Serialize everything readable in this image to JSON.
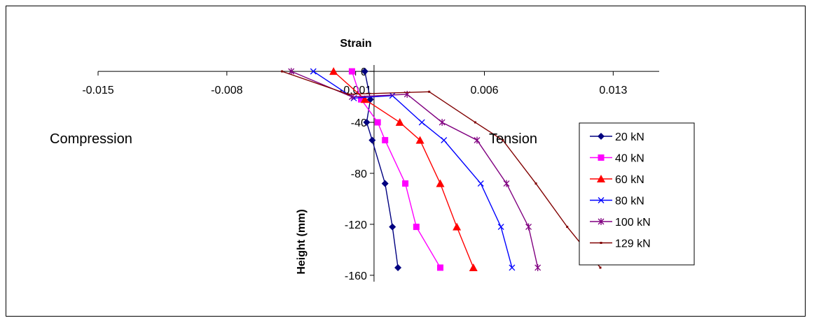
{
  "chart_data": {
    "type": "line",
    "xlabel": "Strain",
    "ylabel": "Height (mm)",
    "xlim": [
      -0.015,
      0.0155
    ],
    "ylim": [
      -165,
      5
    ],
    "x_ticks": [
      -0.015,
      -0.008,
      -0.001,
      0.006,
      0.013
    ],
    "x_tick_labels": [
      "-0.015",
      "-0.008",
      "-0.001",
      "0.006",
      "0.013"
    ],
    "y_ticks": [
      0,
      -40,
      -80,
      -120,
      -160
    ],
    "y_tick_labels": [
      "0",
      "-40",
      "-80",
      "-120",
      "-160"
    ],
    "annotations": [
      {
        "text": "Compression",
        "side": "left"
      },
      {
        "text": "Tension",
        "side": "right"
      }
    ],
    "legend": {
      "placement": "right",
      "border": true
    },
    "series": [
      {
        "name": "20 kN",
        "color": "#000080",
        "marker": "diamond",
        "points": [
          [
            -0.0005,
            0
          ],
          [
            -0.0002,
            -22
          ],
          [
            -0.0004,
            -40
          ],
          [
            -0.0001,
            -54
          ],
          [
            0.0006,
            -88
          ],
          [
            0.001,
            -122
          ],
          [
            0.0013,
            -154
          ]
        ]
      },
      {
        "name": "40 kN",
        "color": "#FF00FF",
        "marker": "square",
        "points": [
          [
            -0.0012,
            0
          ],
          [
            -0.0007,
            -22
          ],
          [
            0.0002,
            -40
          ],
          [
            0.0006,
            -54
          ],
          [
            0.0017,
            -88
          ],
          [
            0.0023,
            -122
          ],
          [
            0.0036,
            -154
          ]
        ]
      },
      {
        "name": "60 kN",
        "color": "#FF0000",
        "marker": "triangle",
        "points": [
          [
            -0.0022,
            0
          ],
          [
            -0.0005,
            -22
          ],
          [
            0.0014,
            -40
          ],
          [
            0.0025,
            -54
          ],
          [
            0.0036,
            -88
          ],
          [
            0.0045,
            -122
          ],
          [
            0.0054,
            -154
          ]
        ]
      },
      {
        "name": "80 kN",
        "color": "#0000FF",
        "marker": "x",
        "points": [
          [
            -0.0033,
            0
          ],
          [
            -0.0011,
            -21
          ],
          [
            0.001,
            -19
          ],
          [
            0.0026,
            -40
          ],
          [
            0.0038,
            -54
          ],
          [
            0.0058,
            -88
          ],
          [
            0.0069,
            -122
          ],
          [
            0.0075,
            -154
          ]
        ]
      },
      {
        "name": "100 kN",
        "color": "#800080",
        "marker": "star",
        "points": [
          [
            -0.0045,
            0
          ],
          [
            -0.0012,
            -20
          ],
          [
            0.0018,
            -18
          ],
          [
            0.0037,
            -40
          ],
          [
            0.0056,
            -54
          ],
          [
            0.0072,
            -88
          ],
          [
            0.0084,
            -122
          ],
          [
            0.0089,
            -154
          ]
        ]
      },
      {
        "name": "129 kN",
        "color": "#800000",
        "marker": "dot",
        "points": [
          [
            -0.005,
            0
          ],
          [
            -0.0014,
            -18
          ],
          [
            0.003,
            -16
          ],
          [
            0.0055,
            -40
          ],
          [
            0.007,
            -54
          ],
          [
            0.0088,
            -88
          ],
          [
            0.0105,
            -122
          ],
          [
            0.0123,
            -154
          ]
        ]
      }
    ]
  }
}
